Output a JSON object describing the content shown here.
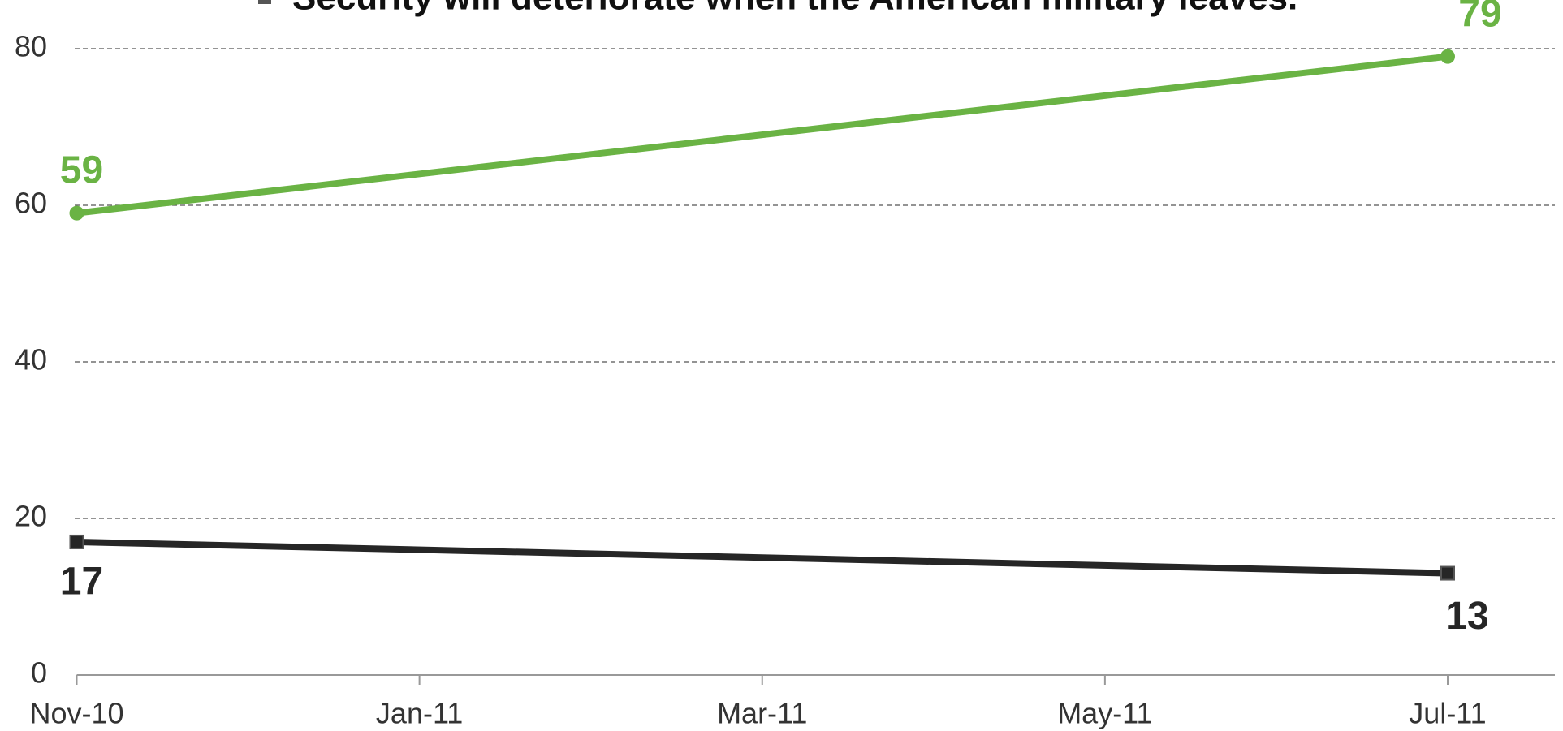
{
  "chart_data": {
    "type": "line",
    "x": [
      "Nov-10",
      "Jul-11"
    ],
    "series": [
      {
        "name": "Security will deteriorate when the American military leaves.",
        "color": "#6ab344",
        "marker": "circle",
        "values": [
          59,
          79
        ]
      },
      {
        "color": "#262626",
        "marker": "square",
        "values": [
          17,
          13
        ]
      }
    ],
    "ylim": [
      0,
      80
    ],
    "yticks": [
      0,
      20,
      40,
      60,
      80
    ],
    "xticks": [
      "Nov-10",
      "Jan-11",
      "Mar-11",
      "May-11",
      "Jul-11"
    ],
    "grid": true
  }
}
